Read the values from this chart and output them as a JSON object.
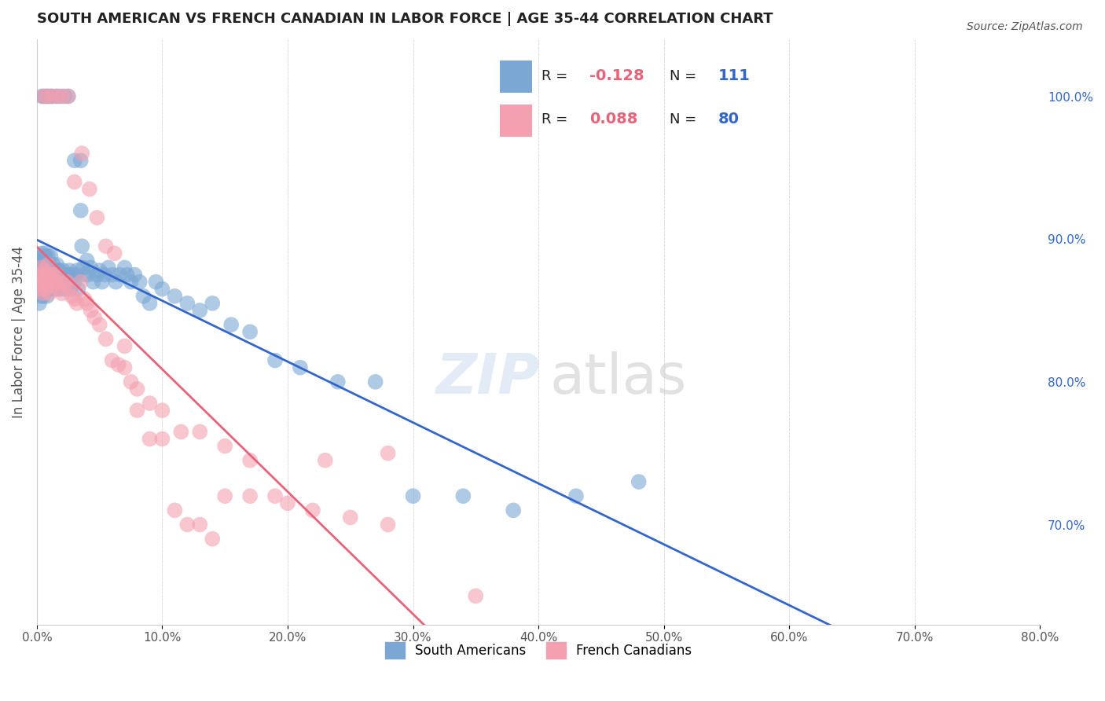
{
  "title": "SOUTH AMERICAN VS FRENCH CANADIAN IN LABOR FORCE | AGE 35-44 CORRELATION CHART",
  "source": "Source: ZipAtlas.com",
  "xlabel_bottom": "",
  "ylabel_left": "In Labor Force | Age 35-44",
  "xlabel_left_bottom": "0.0%",
  "xlabel_right_bottom": "80.0%",
  "legend_blue_label": "South Americans",
  "legend_pink_label": "French Canadians",
  "blue_R": -0.128,
  "blue_N": 111,
  "pink_R": 0.088,
  "pink_N": 80,
  "blue_color": "#7BA7D4",
  "pink_color": "#F4A0B0",
  "blue_line_color": "#3366CC",
  "pink_line_color": "#E8637A",
  "right_yticks": [
    0.7,
    0.8,
    0.9,
    1.0
  ],
  "right_ytick_labels": [
    "70.0%",
    "80.0%",
    "90.0%",
    "100.0%"
  ],
  "watermark": "ZIPatlas",
  "blue_scatter_x": [
    0.002,
    0.003,
    0.003,
    0.003,
    0.004,
    0.004,
    0.004,
    0.004,
    0.005,
    0.005,
    0.005,
    0.005,
    0.006,
    0.006,
    0.006,
    0.006,
    0.007,
    0.007,
    0.007,
    0.007,
    0.008,
    0.008,
    0.008,
    0.009,
    0.009,
    0.009,
    0.009,
    0.01,
    0.01,
    0.01,
    0.011,
    0.011,
    0.011,
    0.012,
    0.012,
    0.013,
    0.013,
    0.014,
    0.014,
    0.015,
    0.015,
    0.016,
    0.016,
    0.017,
    0.018,
    0.018,
    0.019,
    0.02,
    0.021,
    0.022,
    0.023,
    0.024,
    0.025,
    0.026,
    0.027,
    0.028,
    0.03,
    0.031,
    0.032,
    0.033,
    0.035,
    0.036,
    0.037,
    0.038,
    0.04,
    0.041,
    0.043,
    0.045,
    0.048,
    0.05,
    0.052,
    0.054,
    0.057,
    0.06,
    0.063,
    0.066,
    0.07,
    0.072,
    0.075,
    0.078,
    0.082,
    0.085,
    0.09,
    0.095,
    0.1,
    0.11,
    0.12,
    0.13,
    0.14,
    0.155,
    0.17,
    0.19,
    0.21,
    0.24,
    0.27,
    0.3,
    0.34,
    0.38,
    0.43,
    0.48,
    0.004,
    0.006,
    0.008,
    0.01,
    0.012,
    0.015,
    0.018,
    0.022,
    0.025,
    0.03,
    0.035
  ],
  "blue_scatter_y": [
    0.855,
    0.87,
    0.88,
    0.86,
    0.875,
    0.885,
    0.89,
    0.87,
    0.88,
    0.888,
    0.878,
    0.86,
    0.885,
    0.878,
    0.89,
    0.87,
    0.882,
    0.875,
    0.888,
    0.87,
    0.88,
    0.87,
    0.86,
    0.882,
    0.875,
    0.888,
    0.865,
    0.878,
    0.87,
    0.882,
    0.875,
    0.888,
    0.865,
    0.878,
    0.87,
    0.882,
    0.875,
    0.878,
    0.865,
    0.878,
    0.87,
    0.882,
    0.875,
    0.878,
    0.865,
    0.878,
    0.87,
    0.875,
    0.878,
    0.865,
    0.875,
    0.87,
    0.875,
    0.878,
    0.865,
    0.875,
    0.87,
    0.875,
    0.878,
    0.865,
    0.92,
    0.895,
    0.88,
    0.875,
    0.885,
    0.875,
    0.88,
    0.87,
    0.875,
    0.878,
    0.87,
    0.875,
    0.88,
    0.875,
    0.87,
    0.875,
    0.88,
    0.875,
    0.87,
    0.875,
    0.87,
    0.86,
    0.855,
    0.87,
    0.865,
    0.86,
    0.855,
    0.85,
    0.855,
    0.84,
    0.835,
    0.815,
    0.81,
    0.8,
    0.8,
    0.72,
    0.72,
    0.71,
    0.72,
    0.73,
    1.0,
    1.0,
    1.0,
    1.0,
    1.0,
    1.0,
    1.0,
    1.0,
    1.0,
    0.955,
    0.955
  ],
  "pink_scatter_x": [
    0.002,
    0.003,
    0.003,
    0.004,
    0.004,
    0.005,
    0.005,
    0.006,
    0.006,
    0.007,
    0.007,
    0.008,
    0.008,
    0.009,
    0.009,
    0.01,
    0.01,
    0.011,
    0.012,
    0.013,
    0.014,
    0.015,
    0.016,
    0.017,
    0.018,
    0.02,
    0.022,
    0.024,
    0.026,
    0.028,
    0.03,
    0.032,
    0.035,
    0.038,
    0.04,
    0.043,
    0.046,
    0.05,
    0.055,
    0.06,
    0.065,
    0.07,
    0.075,
    0.08,
    0.09,
    0.1,
    0.115,
    0.13,
    0.15,
    0.17,
    0.19,
    0.22,
    0.25,
    0.28,
    0.005,
    0.008,
    0.012,
    0.016,
    0.02,
    0.025,
    0.03,
    0.036,
    0.042,
    0.048,
    0.055,
    0.062,
    0.07,
    0.08,
    0.09,
    0.1,
    0.11,
    0.12,
    0.13,
    0.14,
    0.15,
    0.17,
    0.2,
    0.23,
    0.28,
    0.35
  ],
  "pink_scatter_y": [
    0.87,
    0.875,
    0.865,
    0.87,
    0.88,
    0.875,
    0.862,
    0.87,
    0.878,
    0.865,
    0.872,
    0.868,
    0.875,
    0.87,
    0.882,
    0.875,
    0.862,
    0.87,
    0.875,
    0.868,
    0.875,
    0.87,
    0.875,
    0.865,
    0.87,
    0.862,
    0.868,
    0.87,
    0.865,
    0.86,
    0.858,
    0.855,
    0.87,
    0.858,
    0.855,
    0.85,
    0.845,
    0.84,
    0.83,
    0.815,
    0.812,
    0.81,
    0.8,
    0.795,
    0.785,
    0.78,
    0.765,
    0.765,
    0.755,
    0.745,
    0.72,
    0.71,
    0.705,
    0.7,
    1.0,
    1.0,
    1.0,
    1.0,
    1.0,
    1.0,
    0.94,
    0.96,
    0.935,
    0.915,
    0.895,
    0.89,
    0.825,
    0.78,
    0.76,
    0.76,
    0.71,
    0.7,
    0.7,
    0.69,
    0.72,
    0.72,
    0.715,
    0.745,
    0.75,
    0.65
  ]
}
